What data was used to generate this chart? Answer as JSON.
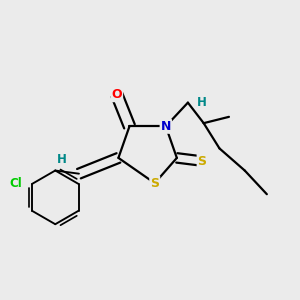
{
  "background_color": "#ebebeb",
  "atom_colors": {
    "O": "#ff0000",
    "N": "#0000cc",
    "S": "#ccaa00",
    "Cl": "#00cc00",
    "H": "#008888",
    "C": "#000000"
  },
  "figsize": [
    3.0,
    3.0
  ],
  "dpi": 100
}
